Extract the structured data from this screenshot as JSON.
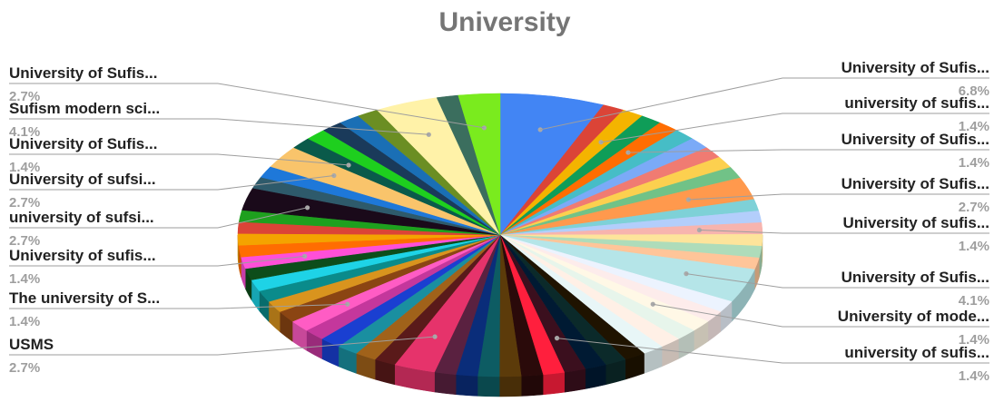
{
  "chart_data": {
    "type": "pie",
    "title": "University",
    "three_d": true,
    "legend": "none",
    "slices": [
      {
        "label": "University of Sufis...",
        "percent": 6.8,
        "color": "#4285f4",
        "labeled": true
      },
      {
        "label": "",
        "percent": 1.4,
        "color": "#db4437",
        "labeled": false
      },
      {
        "label": "university of sufis...",
        "percent": 1.4,
        "color": "#f4b400",
        "labeled": true
      },
      {
        "label": "",
        "percent": 1.4,
        "color": "#0f9d58",
        "labeled": false
      },
      {
        "label": "University of Sufis...",
        "percent": 1.4,
        "color": "#ff6d01",
        "labeled": true
      },
      {
        "label": "",
        "percent": 1.4,
        "color": "#46bdc6",
        "labeled": false
      },
      {
        "label": "",
        "percent": 1.4,
        "color": "#7baaf7",
        "labeled": false
      },
      {
        "label": "",
        "percent": 1.4,
        "color": "#f07b72",
        "labeled": false
      },
      {
        "label": "",
        "percent": 1.4,
        "color": "#fcd04f",
        "labeled": false
      },
      {
        "label": "",
        "percent": 1.4,
        "color": "#71c287",
        "labeled": false
      },
      {
        "label": "University of Sufis...",
        "percent": 2.7,
        "color": "#ff994d",
        "labeled": true
      },
      {
        "label": "",
        "percent": 1.4,
        "color": "#7ed1d7",
        "labeled": false
      },
      {
        "label": "",
        "percent": 1.4,
        "color": "#b3cefb",
        "labeled": false
      },
      {
        "label": "University of sufis...",
        "percent": 1.4,
        "color": "#f7b4ae",
        "labeled": true
      },
      {
        "label": "",
        "percent": 1.4,
        "color": "#fde49b",
        "labeled": false
      },
      {
        "label": "",
        "percent": 1.4,
        "color": "#aedcba",
        "labeled": false
      },
      {
        "label": "",
        "percent": 1.4,
        "color": "#ffc599",
        "labeled": false
      },
      {
        "label": "University of Sufis...",
        "percent": 4.1,
        "color": "#b5e5e8",
        "labeled": true
      },
      {
        "label": "",
        "percent": 1.4,
        "color": "#ecf3fe",
        "labeled": false
      },
      {
        "label": "",
        "percent": 1.4,
        "color": "#fdeceb",
        "labeled": false
      },
      {
        "label": "University of mode...",
        "percent": 1.4,
        "color": "#fff8e6",
        "labeled": true
      },
      {
        "label": "",
        "percent": 1.4,
        "color": "#e7f5eb",
        "labeled": false
      },
      {
        "label": "",
        "percent": 1.4,
        "color": "#fff0e6",
        "labeled": false
      },
      {
        "label": "",
        "percent": 1.4,
        "color": "#e8f6f7",
        "labeled": false
      },
      {
        "label": "",
        "percent": 1.4,
        "color": "#1f1300",
        "labeled": false
      },
      {
        "label": "",
        "percent": 1.4,
        "color": "#0b2a2a",
        "labeled": false
      },
      {
        "label": "",
        "percent": 1.4,
        "color": "#001a33",
        "labeled": false
      },
      {
        "label": "university of sufis...",
        "percent": 1.4,
        "color": "#3b0f1e",
        "labeled": true
      },
      {
        "label": "",
        "percent": 1.4,
        "color": "#ff1f3d",
        "labeled": false
      },
      {
        "label": "",
        "percent": 1.4,
        "color": "#2a0a0a",
        "labeled": false
      },
      {
        "label": "",
        "percent": 1.4,
        "color": "#5c3b0a",
        "labeled": false
      },
      {
        "label": "",
        "percent": 1.4,
        "color": "#0d5c63",
        "labeled": false
      },
      {
        "label": "",
        "percent": 1.4,
        "color": "#0a2d7a",
        "labeled": false
      },
      {
        "label": "",
        "percent": 1.4,
        "color": "#5a2140",
        "labeled": false
      },
      {
        "label": "USMS",
        "percent": 2.7,
        "color": "#e6336b",
        "labeled": true
      },
      {
        "label": "",
        "percent": 1.4,
        "color": "#5a1a1a",
        "labeled": false
      },
      {
        "label": "",
        "percent": 1.4,
        "color": "#a0621a",
        "labeled": false
      },
      {
        "label": "",
        "percent": 1.4,
        "color": "#1a8fa0",
        "labeled": false
      },
      {
        "label": "",
        "percent": 1.4,
        "color": "#1a3fd1",
        "labeled": false
      },
      {
        "label": "",
        "percent": 1.4,
        "color": "#c4379c",
        "labeled": false
      },
      {
        "label": "The university of S...",
        "percent": 1.4,
        "color": "#ff5cc4",
        "labeled": true
      },
      {
        "label": "",
        "percent": 1.4,
        "color": "#8b4513",
        "labeled": false
      },
      {
        "label": "",
        "percent": 1.4,
        "color": "#d9941e",
        "labeled": false
      },
      {
        "label": "",
        "percent": 1.4,
        "color": "#0a8b8b",
        "labeled": false
      },
      {
        "label": "",
        "percent": 1.4,
        "color": "#1ed3e6",
        "labeled": false
      },
      {
        "label": "",
        "percent": 1.4,
        "color": "#0d4d1a",
        "labeled": false
      },
      {
        "label": "University of sufis...",
        "percent": 1.4,
        "color": "#ff4fd8",
        "labeled": true
      },
      {
        "label": "",
        "percent": 1.4,
        "color": "#ff6d01",
        "labeled": false
      },
      {
        "label": "",
        "percent": 1.4,
        "color": "#f4a300",
        "labeled": false
      },
      {
        "label": "",
        "percent": 1.4,
        "color": "#db4437",
        "labeled": false
      },
      {
        "label": "",
        "percent": 1.4,
        "color": "#1ea01e",
        "labeled": false
      },
      {
        "label": "university of sufsi...",
        "percent": 2.7,
        "color": "#1a0a1a",
        "labeled": true
      },
      {
        "label": "",
        "percent": 1.4,
        "color": "#2e5a6b",
        "labeled": false
      },
      {
        "label": "",
        "percent": 1.4,
        "color": "#1e78d9",
        "labeled": false
      },
      {
        "label": "University of sufsi...",
        "percent": 2.7,
        "color": "#f9c46b",
        "labeled": true
      },
      {
        "label": "University of Sufis...",
        "percent": 1.4,
        "color": "#0a5a4a",
        "labeled": true
      },
      {
        "label": "",
        "percent": 1.4,
        "color": "#1ecf1e",
        "labeled": false
      },
      {
        "label": "",
        "percent": 1.4,
        "color": "#1a3a5a",
        "labeled": false
      },
      {
        "label": "",
        "percent": 1.4,
        "color": "#1a6fb5",
        "labeled": false
      },
      {
        "label": "",
        "percent": 1.4,
        "color": "#6b8e23",
        "labeled": false
      },
      {
        "label": "Sufism modern sci...",
        "percent": 4.1,
        "color": "#fff2a8",
        "labeled": true
      },
      {
        "label": "",
        "percent": 1.4,
        "color": "#3b6e5e",
        "labeled": false
      },
      {
        "label": "University of Sufis...",
        "percent": 2.7,
        "color": "#7aeb1e",
        "labeled": true
      }
    ],
    "labels_right": [
      {
        "name": "University of Sufis...",
        "pct": "6.8%"
      },
      {
        "name": "university of sufis...",
        "pct": "1.4%"
      },
      {
        "name": "University of Sufis...",
        "pct": "1.4%"
      },
      {
        "name": "University of Sufis...",
        "pct": "2.7%"
      },
      {
        "name": "University of sufis...",
        "pct": "1.4%"
      },
      {
        "name": "University of Sufis...",
        "pct": "4.1%"
      },
      {
        "name": "University of mode...",
        "pct": "1.4%"
      },
      {
        "name": "university of sufis...",
        "pct": "1.4%"
      }
    ],
    "labels_left": [
      {
        "name": "University of Sufis...",
        "pct": "2.7%"
      },
      {
        "name": "Sufism modern sci...",
        "pct": "4.1%"
      },
      {
        "name": "University of Sufis...",
        "pct": "1.4%"
      },
      {
        "name": "University of sufsi...",
        "pct": "2.7%"
      },
      {
        "name": "university of sufsi...",
        "pct": "2.7%"
      },
      {
        "name": "University of sufis...",
        "pct": "1.4%"
      },
      {
        "name": "The university of S...",
        "pct": "1.4%"
      },
      {
        "name": "USMS",
        "pct": "2.7%"
      }
    ]
  }
}
